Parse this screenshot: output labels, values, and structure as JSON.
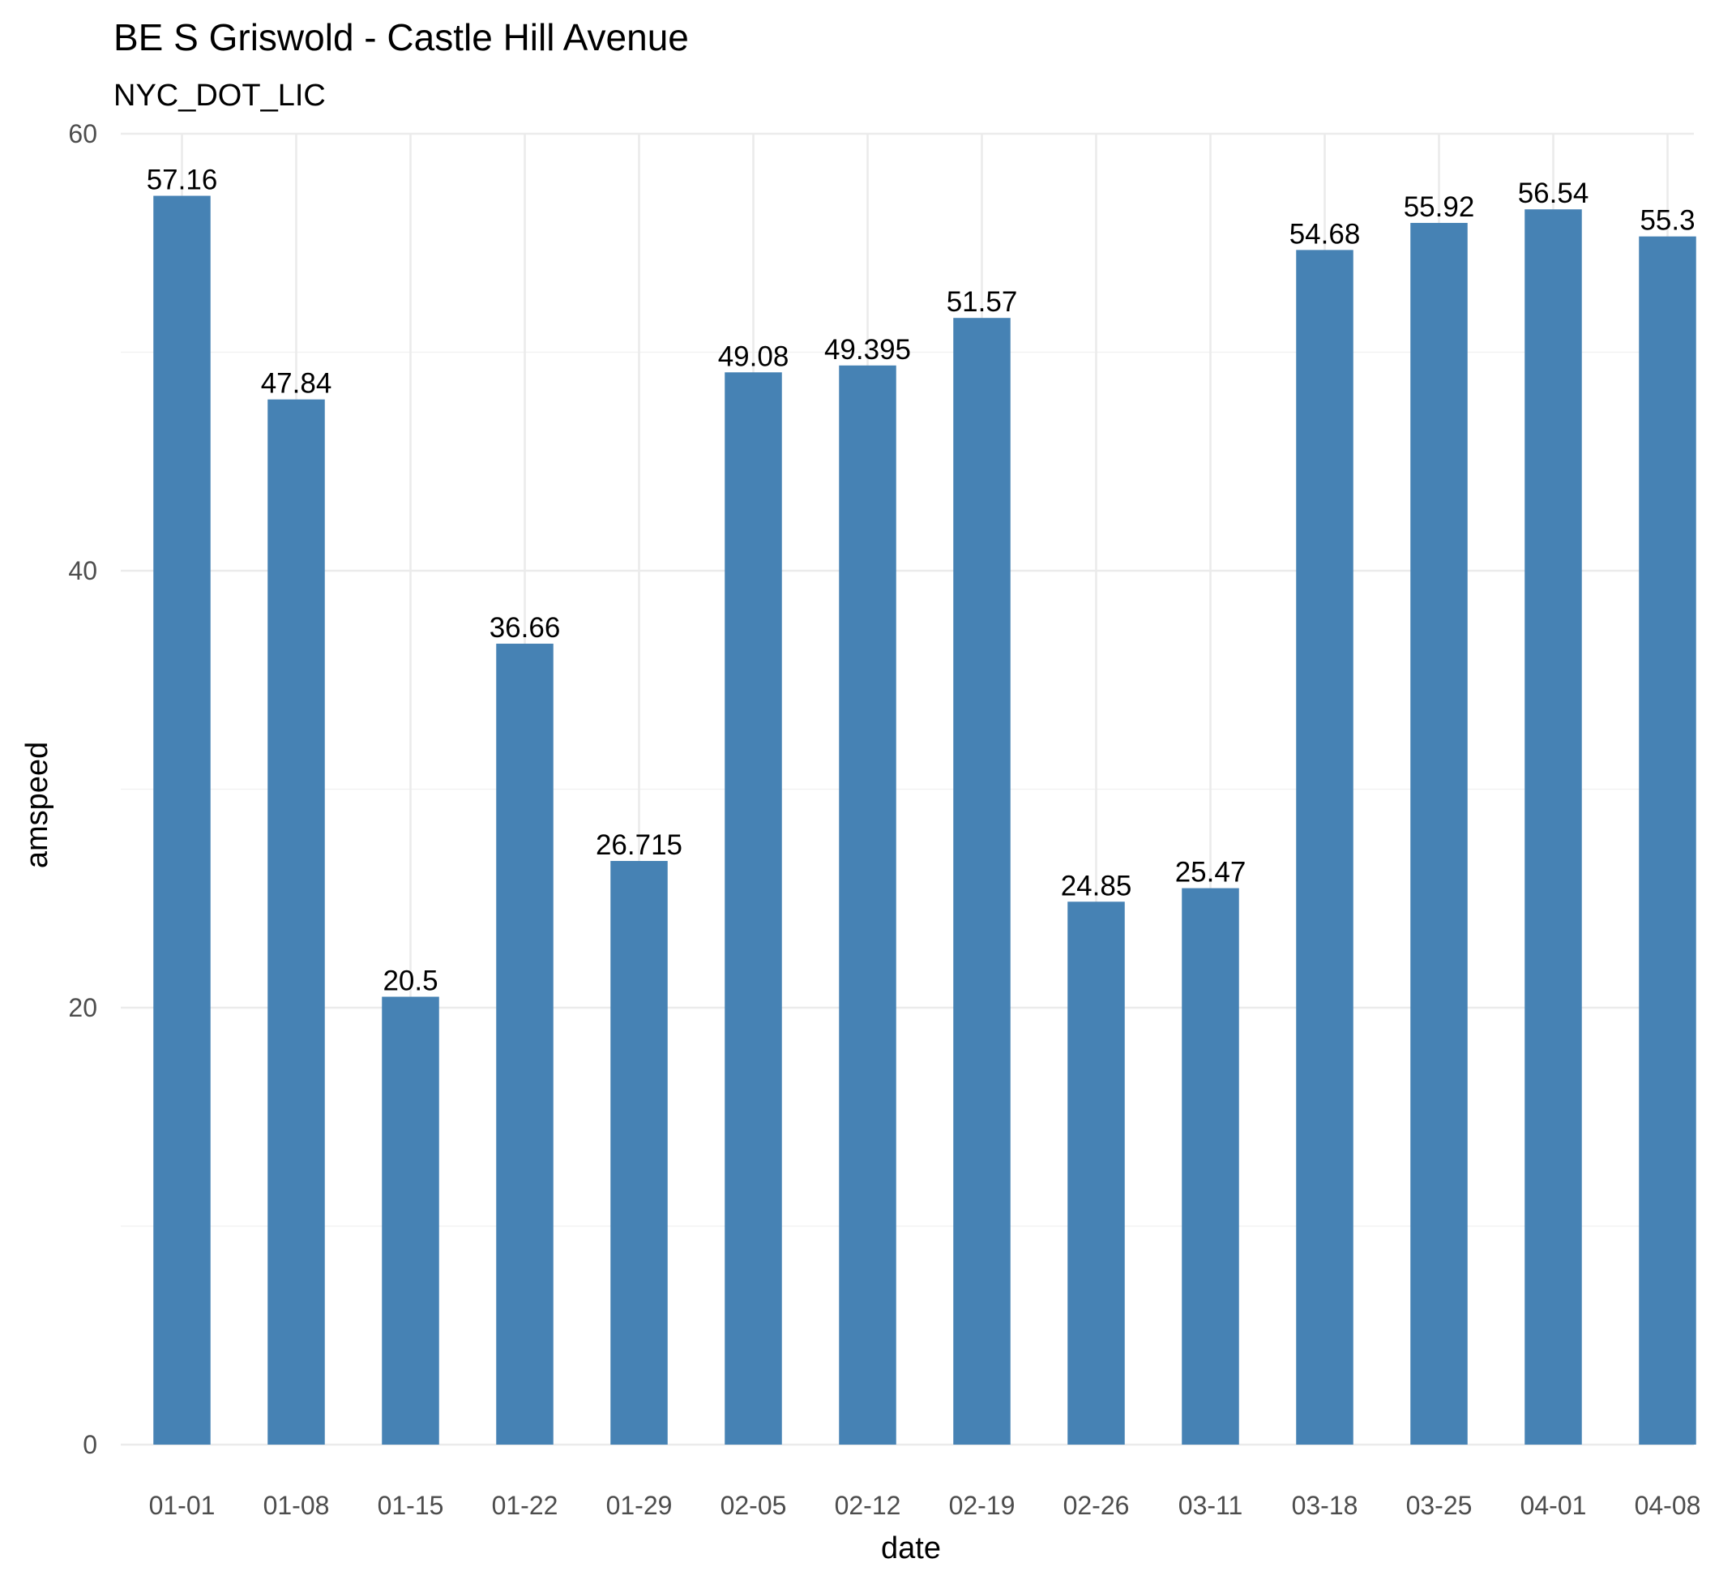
{
  "chart_data": {
    "type": "bar",
    "title": "BE S Griswold - Castle Hill Avenue",
    "subtitle": "NYC_DOT_LIC",
    "xlabel": "date",
    "ylabel": "amspeed",
    "categories": [
      "01-01",
      "01-08",
      "01-15",
      "01-22",
      "01-29",
      "02-05",
      "02-12",
      "02-19",
      "02-26",
      "03-11",
      "03-18",
      "03-25",
      "04-01",
      "04-08"
    ],
    "values": [
      57.16,
      47.84,
      20.5,
      36.66,
      26.715,
      49.08,
      49.395,
      51.57,
      24.85,
      25.47,
      54.68,
      55.92,
      56.54,
      55.3
    ],
    "value_labels": [
      "57.16",
      "47.84",
      "20.5",
      "36.66",
      "26.715",
      "49.08",
      "49.395",
      "51.57",
      "24.85",
      "25.47",
      "54.68",
      "55.92",
      "56.54",
      "55.3"
    ],
    "ylim": [
      0,
      60
    ],
    "y_ticks": [
      0,
      20,
      40,
      60
    ],
    "y_tick_labels": [
      "0",
      "20",
      "40",
      "60"
    ],
    "y_minor_ticks": [
      10,
      30,
      50
    ],
    "grid": true,
    "legend": "none",
    "bar_color": "#4682B4",
    "background": "#FFFFFF"
  }
}
